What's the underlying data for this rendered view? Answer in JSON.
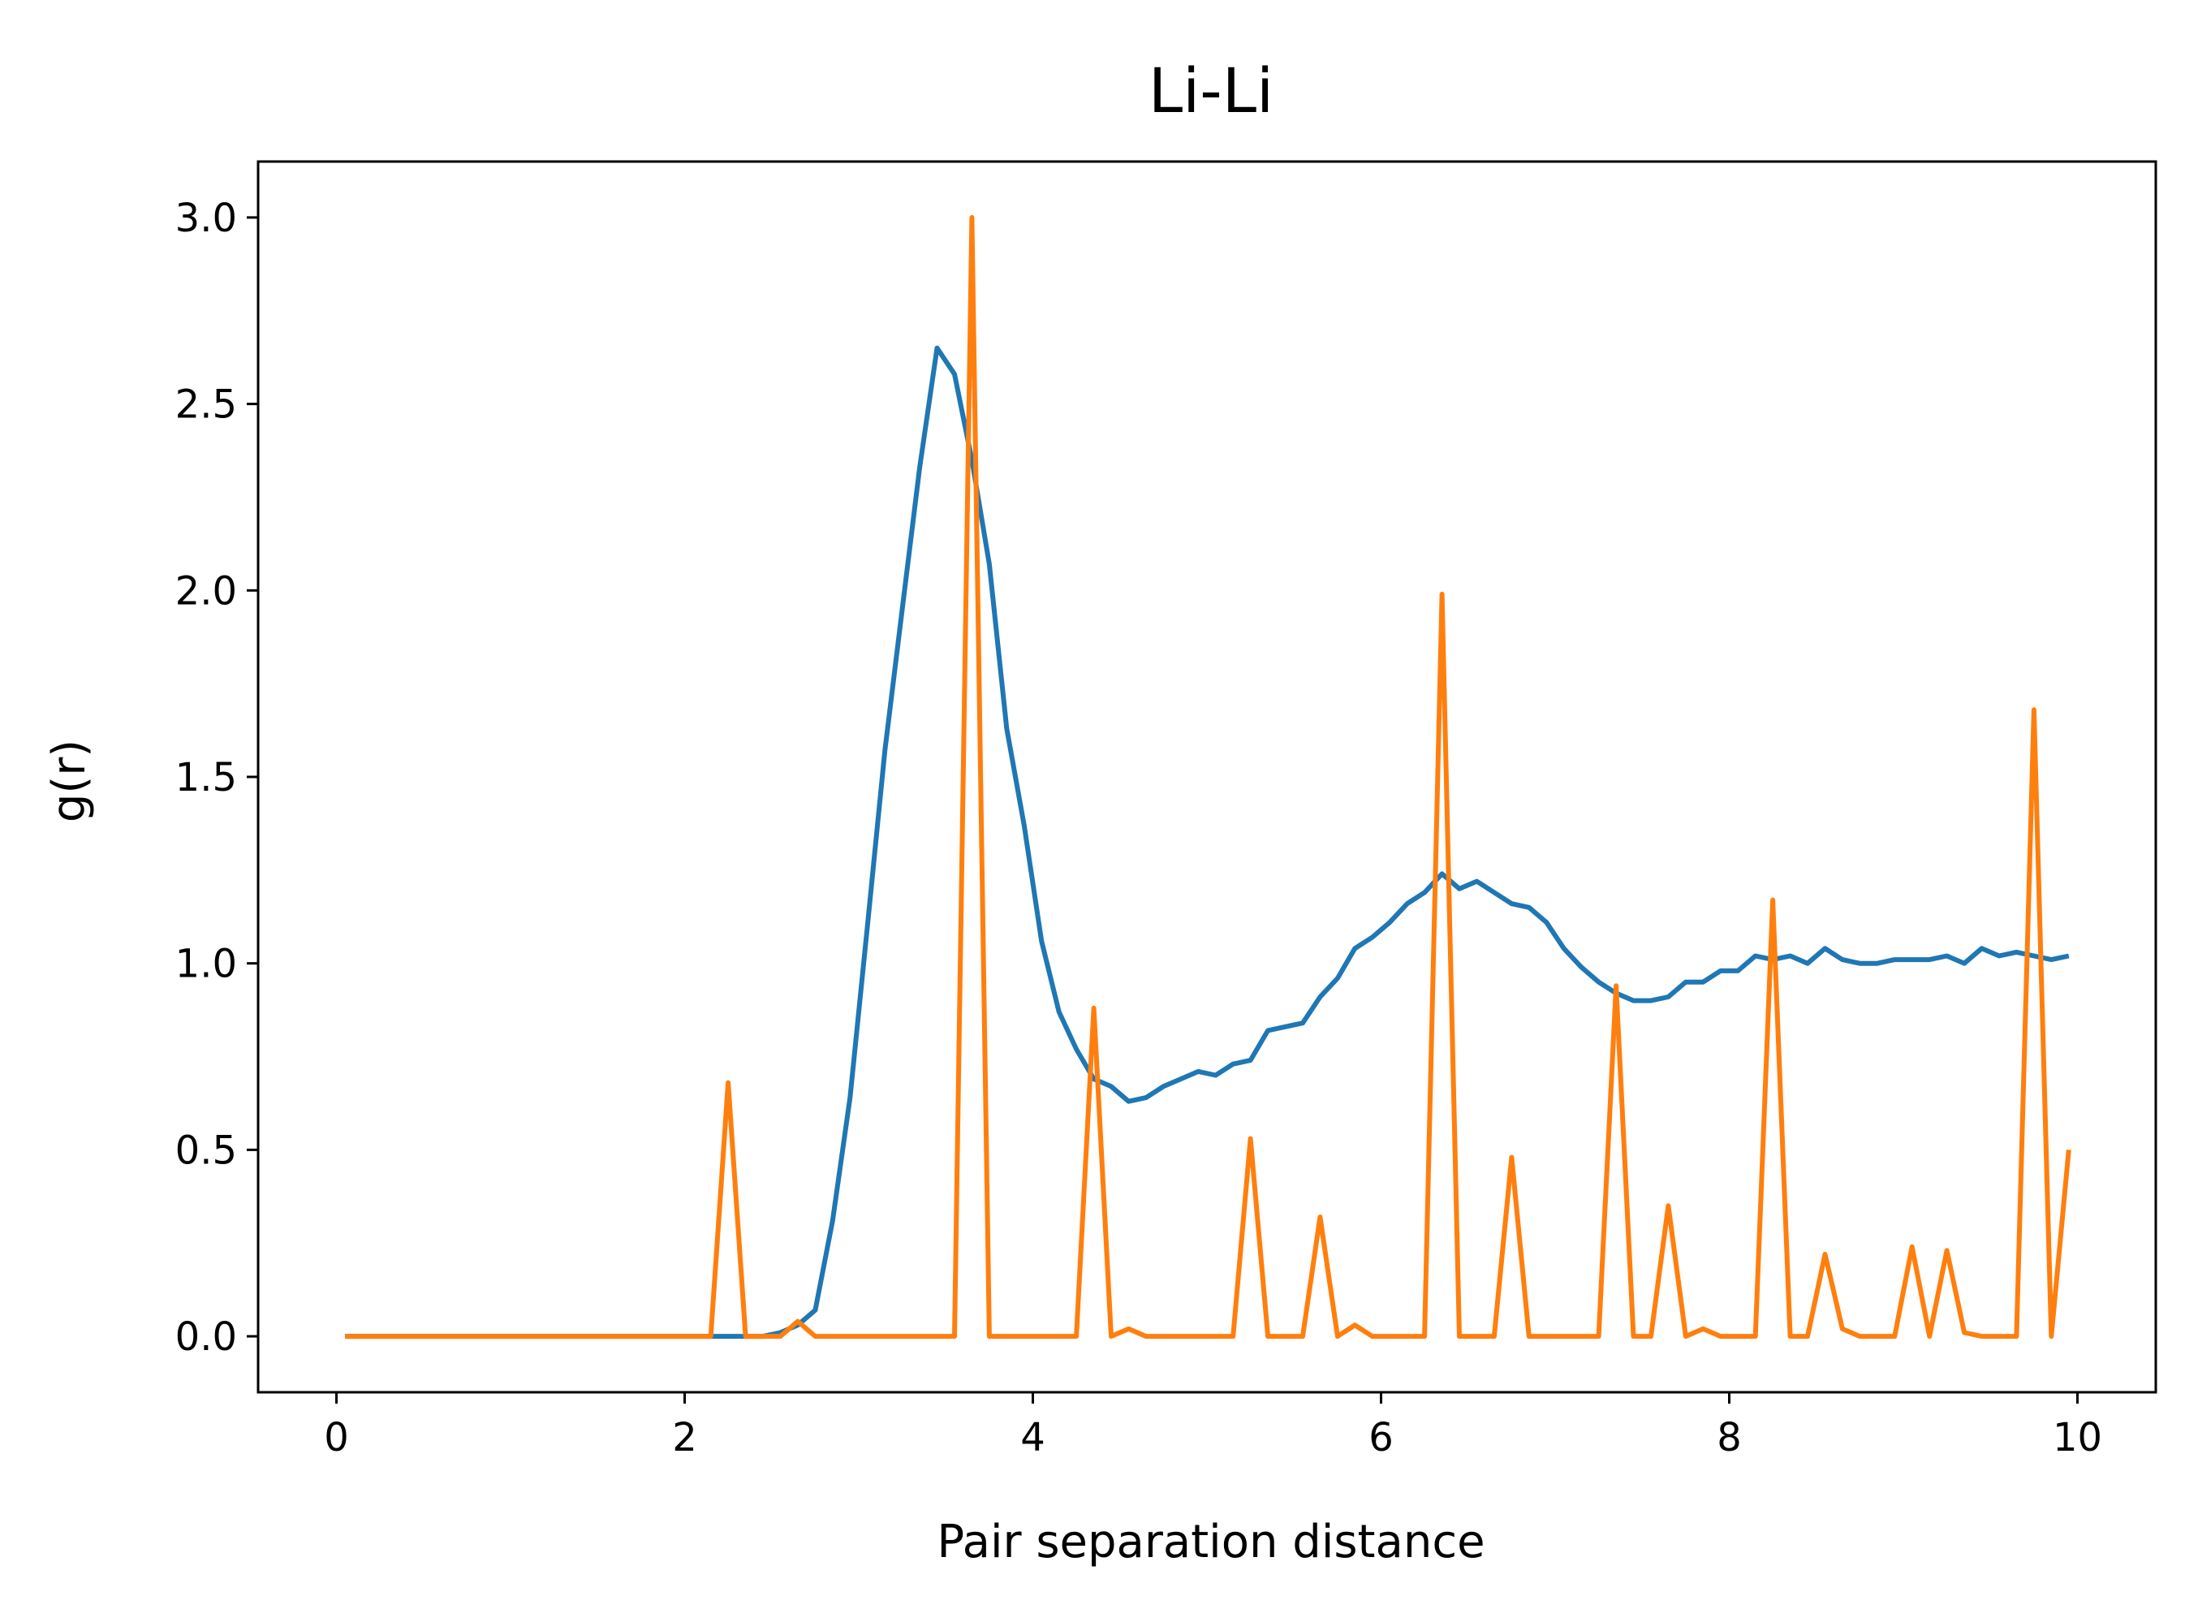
{
  "chart_data": {
    "type": "line",
    "title": "Li-Li",
    "xlabel": "Pair separation distance",
    "ylabel": "g(r)",
    "xlim": [
      -0.45,
      10.45
    ],
    "ylim": [
      -0.15,
      3.15
    ],
    "xticks": [
      0,
      2,
      4,
      6,
      8,
      10
    ],
    "xtick_labels": [
      "0",
      "2",
      "4",
      "6",
      "8",
      "10"
    ],
    "yticks": [
      0.0,
      0.5,
      1.0,
      1.5,
      2.0,
      2.5,
      3.0
    ],
    "ytick_labels": [
      "0.0",
      "0.5",
      "1.0",
      "1.5",
      "2.0",
      "2.5",
      "3.0"
    ],
    "grid": false,
    "legend": "none",
    "series": [
      {
        "color": "#1f77b4",
        "x": [
          0.05,
          0.15,
          0.25,
          0.35,
          0.45,
          0.55,
          0.65,
          0.75,
          0.85,
          0.95,
          1.05,
          1.15,
          1.25,
          1.35,
          1.45,
          1.55,
          1.65,
          1.75,
          1.85,
          1.95,
          2.05,
          2.15,
          2.25,
          2.35,
          2.45,
          2.55,
          2.65,
          2.75,
          2.85,
          2.95,
          3.05,
          3.15,
          3.25,
          3.35,
          3.45,
          3.55,
          3.65,
          3.75,
          3.85,
          3.95,
          4.05,
          4.15,
          4.25,
          4.35,
          4.45,
          4.55,
          4.65,
          4.75,
          4.85,
          4.95,
          5.05,
          5.15,
          5.25,
          5.35,
          5.45,
          5.55,
          5.65,
          5.75,
          5.85,
          5.95,
          6.05,
          6.15,
          6.25,
          6.35,
          6.45,
          6.55,
          6.65,
          6.75,
          6.85,
          6.95,
          7.05,
          7.15,
          7.25,
          7.35,
          7.45,
          7.55,
          7.65,
          7.75,
          7.85,
          7.95,
          8.05,
          8.15,
          8.25,
          8.35,
          8.45,
          8.55,
          8.65,
          8.75,
          8.85,
          8.95,
          9.05,
          9.15,
          9.25,
          9.35,
          9.45,
          9.55,
          9.65,
          9.75,
          9.85,
          9.95
        ],
        "y": [
          0,
          0,
          0,
          0,
          0,
          0,
          0,
          0,
          0,
          0,
          0,
          0,
          0,
          0,
          0,
          0,
          0,
          0,
          0,
          0,
          0,
          0,
          0,
          0,
          0,
          0.01,
          0.03,
          0.07,
          0.31,
          0.64,
          1.1,
          1.57,
          1.95,
          2.33,
          2.65,
          2.58,
          2.35,
          2.07,
          1.63,
          1.37,
          1.06,
          0.87,
          0.77,
          0.69,
          0.67,
          0.63,
          0.64,
          0.67,
          0.69,
          0.71,
          0.7,
          0.73,
          0.74,
          0.82,
          0.83,
          0.84,
          0.91,
          0.96,
          1.04,
          1.07,
          1.11,
          1.16,
          1.19,
          1.24,
          1.2,
          1.22,
          1.19,
          1.16,
          1.15,
          1.11,
          1.04,
          0.99,
          0.95,
          0.92,
          0.9,
          0.9,
          0.91,
          0.95,
          0.95,
          0.98,
          0.98,
          1.02,
          1.01,
          1.02,
          1.0,
          1.04,
          1.01,
          1.0,
          1.0,
          1.01,
          1.01,
          1.01,
          1.02,
          1.0,
          1.04,
          1.02,
          1.03,
          1.02,
          1.01,
          1.02
        ]
      },
      {
        "color": "#ff7f0e",
        "x": [
          0.05,
          0.15,
          0.25,
          0.35,
          0.45,
          0.55,
          0.65,
          0.75,
          0.85,
          0.95,
          1.05,
          1.15,
          1.25,
          1.35,
          1.45,
          1.55,
          1.65,
          1.75,
          1.85,
          1.95,
          2.05,
          2.15,
          2.25,
          2.35,
          2.45,
          2.55,
          2.65,
          2.75,
          2.85,
          2.95,
          3.05,
          3.15,
          3.25,
          3.35,
          3.45,
          3.55,
          3.65,
          3.75,
          3.85,
          3.95,
          4.05,
          4.15,
          4.25,
          4.35,
          4.45,
          4.55,
          4.65,
          4.75,
          4.85,
          4.95,
          5.05,
          5.15,
          5.25,
          5.35,
          5.45,
          5.55,
          5.65,
          5.75,
          5.85,
          5.95,
          6.05,
          6.15,
          6.25,
          6.35,
          6.45,
          6.55,
          6.65,
          6.75,
          6.85,
          6.95,
          7.05,
          7.15,
          7.25,
          7.35,
          7.45,
          7.55,
          7.65,
          7.75,
          7.85,
          7.95,
          8.05,
          8.15,
          8.25,
          8.35,
          8.45,
          8.55,
          8.65,
          8.75,
          8.85,
          8.95,
          9.05,
          9.15,
          9.25,
          9.35,
          9.45,
          9.55,
          9.65,
          9.75,
          9.85,
          9.95
        ],
        "y": [
          0,
          0,
          0,
          0,
          0,
          0,
          0,
          0,
          0,
          0,
          0,
          0,
          0,
          0,
          0,
          0,
          0,
          0,
          0,
          0,
          0,
          0,
          0.68,
          0,
          0,
          0,
          0.04,
          0,
          0,
          0,
          0,
          0,
          0,
          0,
          0,
          0,
          3.0,
          0,
          0,
          0,
          0,
          0,
          0,
          0.88,
          0,
          0.02,
          0,
          0,
          0,
          0,
          0,
          0,
          0.53,
          0,
          0,
          0,
          0.32,
          0,
          0.03,
          0,
          0,
          0,
          0,
          1.99,
          0,
          0,
          0,
          0.48,
          0,
          0,
          0,
          0,
          0,
          0.94,
          0,
          0,
          0.35,
          0,
          0.02,
          0,
          0,
          0,
          1.17,
          0,
          0,
          0.22,
          0.02,
          0,
          0,
          0,
          0.24,
          0,
          0.23,
          0.01,
          0,
          0,
          0,
          1.68,
          0,
          0.5
        ]
      }
    ]
  }
}
